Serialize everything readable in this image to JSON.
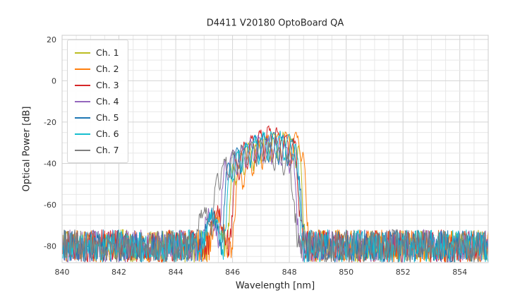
{
  "chart_data": {
    "type": "line",
    "title": "D4411 V20180 OptoBoard QA",
    "xlabel": "Wavelength [nm]",
    "ylabel": "Optical Power [dB]",
    "xlim": [
      840,
      855
    ],
    "ylim": [
      -88,
      22
    ],
    "xticks": [
      840,
      842,
      844,
      846,
      848,
      850,
      852,
      854
    ],
    "yticks": [
      20,
      0,
      -20,
      -40,
      -60,
      -80
    ],
    "grid": true,
    "minor_grid_x_step_nm": 0.5,
    "minor_grid_y_step_db": 5,
    "legend_position": "upper left",
    "noise_floor_db": -80,
    "noise_amplitude_db": 8,
    "sample_step_nm": 0.025,
    "series": [
      {
        "name": "Ch. 1",
        "color": "#bcbd22",
        "band_start_nm": 845.75,
        "band_end_nm": 848.6,
        "peak_wavelength_nm": 847.5,
        "peak_db": -26.0,
        "dome_db": 13,
        "ripple_period_nm": 0.3,
        "ripple_depth_db": 12,
        "edge_width_nm": 0.28,
        "shoulder_center_nm": 845.4,
        "shoulder_db": -66
      },
      {
        "name": "Ch. 2",
        "color": "#ff7f0e",
        "band_start_nm": 845.95,
        "band_end_nm": 848.72,
        "peak_wavelength_nm": 847.8,
        "peak_db": -25.0,
        "dome_db": 13,
        "ripple_period_nm": 0.34,
        "ripple_depth_db": 13,
        "edge_width_nm": 0.26,
        "shoulder_center_nm": 845.5,
        "shoulder_db": -66
      },
      {
        "name": "Ch. 3",
        "color": "#d62728",
        "band_start_nm": 845.85,
        "band_end_nm": 848.5,
        "peak_wavelength_nm": 847.35,
        "peak_db": -23.5,
        "dome_db": 15,
        "ripple_period_nm": 0.3,
        "ripple_depth_db": 14,
        "edge_width_nm": 0.3,
        "shoulder_center_nm": 845.45,
        "shoulder_db": -64
      },
      {
        "name": "Ch. 4",
        "color": "#9467bd",
        "band_start_nm": 845.45,
        "band_end_nm": 848.4,
        "peak_wavelength_nm": 847.1,
        "peak_db": -28.0,
        "dome_db": 13,
        "ripple_period_nm": 0.31,
        "ripple_depth_db": 11,
        "edge_width_nm": 0.3,
        "shoulder_center_nm": 845.2,
        "shoulder_db": -65
      },
      {
        "name": "Ch. 5",
        "color": "#1f77b4",
        "band_start_nm": 845.55,
        "band_end_nm": 848.55,
        "peak_wavelength_nm": 847.3,
        "peak_db": -26.5,
        "dome_db": 13,
        "ripple_period_nm": 0.33,
        "ripple_depth_db": 12,
        "edge_width_nm": 0.3,
        "shoulder_center_nm": 845.25,
        "shoulder_db": -64
      },
      {
        "name": "Ch. 6",
        "color": "#17becf",
        "band_start_nm": 845.65,
        "band_end_nm": 848.5,
        "peak_wavelength_nm": 847.45,
        "peak_db": -25.5,
        "dome_db": 12,
        "ripple_period_nm": 0.3,
        "ripple_depth_db": 12,
        "edge_width_nm": 0.28,
        "shoulder_center_nm": 845.3,
        "shoulder_db": -65
      },
      {
        "name": "Ch. 7",
        "color": "#7f7f7f",
        "band_start_nm": 845.15,
        "band_end_nm": 848.35,
        "peak_wavelength_nm": 846.9,
        "peak_db": -30.0,
        "dome_db": 15,
        "ripple_period_nm": 0.32,
        "ripple_depth_db": 11,
        "edge_width_nm": 0.35,
        "shoulder_center_nm": 845.0,
        "shoulder_db": -63
      }
    ],
    "style": {
      "grid_minor_color": "#e8e8e8",
      "grid_major_color": "#d4d4d4",
      "spine_color": "#cccccc",
      "background": "#ffffff"
    }
  }
}
